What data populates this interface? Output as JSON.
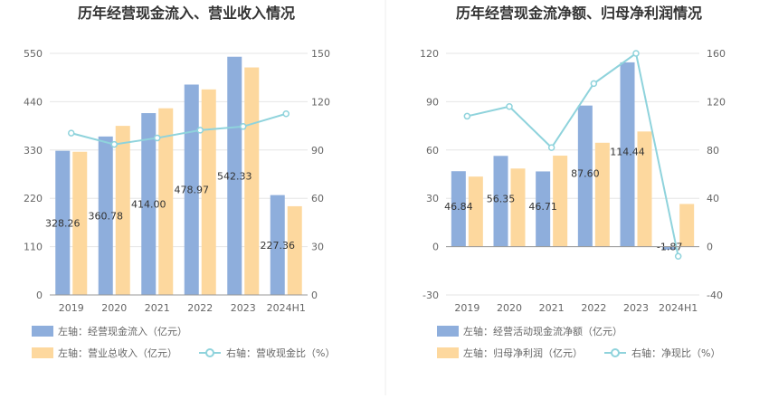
{
  "colors": {
    "bar_primary": "#8eaedc",
    "bar_secondary": "#fdd89e",
    "line": "#8fd3dc",
    "grid": "#e6e6e6",
    "axis_text": "#666666",
    "title": "#333333",
    "divider": "#eeeeee"
  },
  "chart_data": [
    {
      "type": "bar",
      "title": "历年经营现金流入、营业收入情况",
      "categories": [
        "2019",
        "2020",
        "2021",
        "2022",
        "2023",
        "2024H1"
      ],
      "left_axis": {
        "min": 0,
        "max": 550,
        "ticks": [
          "0",
          "110",
          "220",
          "330",
          "440",
          "550"
        ]
      },
      "right_axis": {
        "min": 0,
        "max": 150,
        "ticks": [
          "0",
          "30",
          "60",
          "90",
          "120",
          "150"
        ]
      },
      "series": [
        {
          "name": "左轴：经营现金流入（亿元）",
          "axis": "left",
          "kind": "bar",
          "values": [
            328.26,
            360.78,
            414.0,
            478.97,
            542.33,
            227.36
          ],
          "labels": [
            "328.26",
            "360.78",
            "414.00",
            "478.97",
            "542.33",
            "227.36"
          ]
        },
        {
          "name": "左轴：营业总收入（亿元）",
          "axis": "left",
          "kind": "bar",
          "values": [
            326,
            385,
            425,
            468,
            518,
            202
          ]
        },
        {
          "name": "右轴：营收现金比（%）",
          "axis": "right",
          "kind": "line",
          "values": [
            100.5,
            93.5,
            97.5,
            102.3,
            104.6,
            112.5
          ]
        }
      ]
    },
    {
      "type": "bar",
      "title": "历年经营现金流净额、归母净利润情况",
      "categories": [
        "2019",
        "2020",
        "2021",
        "2022",
        "2023",
        "2024H1"
      ],
      "left_axis": {
        "min": -30,
        "max": 120,
        "ticks": [
          "-30",
          "0",
          "30",
          "60",
          "90",
          "120"
        ]
      },
      "right_axis": {
        "min": -40,
        "max": 160,
        "ticks": [
          "-40",
          "0",
          "40",
          "80",
          "120",
          "160"
        ]
      },
      "series": [
        {
          "name": "左轴：经营活动现金流净额（亿元）",
          "axis": "left",
          "kind": "bar",
          "values": [
            46.84,
            56.35,
            46.71,
            87.6,
            114.44,
            -1.87
          ],
          "labels": [
            "46.84",
            "56.35",
            "46.71",
            "87.60",
            "114.44",
            "-1.87"
          ]
        },
        {
          "name": "左轴：归母净利润（亿元）",
          "axis": "left",
          "kind": "bar",
          "values": [
            43.5,
            48.5,
            56.5,
            64.5,
            71.5,
            26.5
          ]
        },
        {
          "name": "右轴：净现比（%）",
          "axis": "right",
          "kind": "line",
          "values": [
            108,
            116,
            82,
            135,
            160,
            -8
          ]
        }
      ]
    }
  ]
}
